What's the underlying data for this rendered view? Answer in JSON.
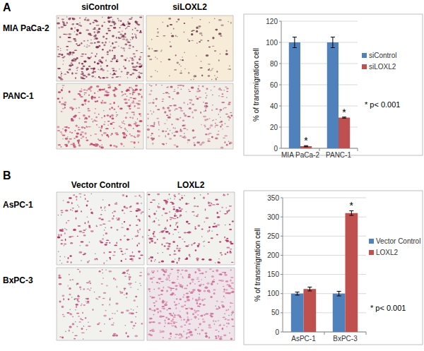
{
  "panels": [
    {
      "label": "A",
      "columns": [
        "siControl",
        "siLOXL2"
      ],
      "rows": [
        "MIA PaCa-2",
        "PANC-1"
      ]
    },
    {
      "label": "B",
      "columns": [
        "Vector Control",
        "LOXL2"
      ],
      "rows": [
        "AsPC-1",
        "BxPC-3"
      ]
    }
  ],
  "chart_data": [
    {
      "type": "bar",
      "y_label": "% of transmigration cell",
      "categories": [
        "MIA PaCa-2",
        "PANC-1"
      ],
      "series": [
        {
          "name": "siControl",
          "color": "#4f81bd",
          "values": [
            100,
            100
          ],
          "errors": [
            5,
            5
          ]
        },
        {
          "name": "siLOXL2",
          "color": "#c0504d",
          "values": [
            2,
            29
          ],
          "errors": [
            0.5,
            0.5
          ]
        }
      ],
      "ylim": [
        0,
        120
      ],
      "yticks": [
        0,
        20,
        40,
        60,
        80,
        100,
        120
      ],
      "grid": true,
      "legend": "right",
      "stars": [
        {
          "series": 1,
          "category": 0,
          "text": "*"
        },
        {
          "series": 1,
          "category": 1,
          "text": "*"
        }
      ],
      "annotation": "* p< 0.001"
    },
    {
      "type": "bar",
      "y_label": "% of transmigration cell",
      "categories": [
        "AsPC-1",
        "BxPC-3"
      ],
      "series": [
        {
          "name": "Vector Control",
          "color": "#4f81bd",
          "values": [
            100,
            100
          ],
          "errors": [
            4,
            6
          ]
        },
        {
          "name": "LOXL2",
          "color": "#c0504d",
          "values": [
            112,
            310
          ],
          "errors": [
            5,
            6
          ]
        }
      ],
      "ylim": [
        0,
        350
      ],
      "yticks": [
        0,
        50,
        100,
        150,
        200,
        250,
        300,
        350
      ],
      "grid": true,
      "legend": "right",
      "stars": [
        {
          "series": 1,
          "category": 1,
          "text": "*"
        }
      ],
      "annotation": "* p< 0.001"
    }
  ]
}
